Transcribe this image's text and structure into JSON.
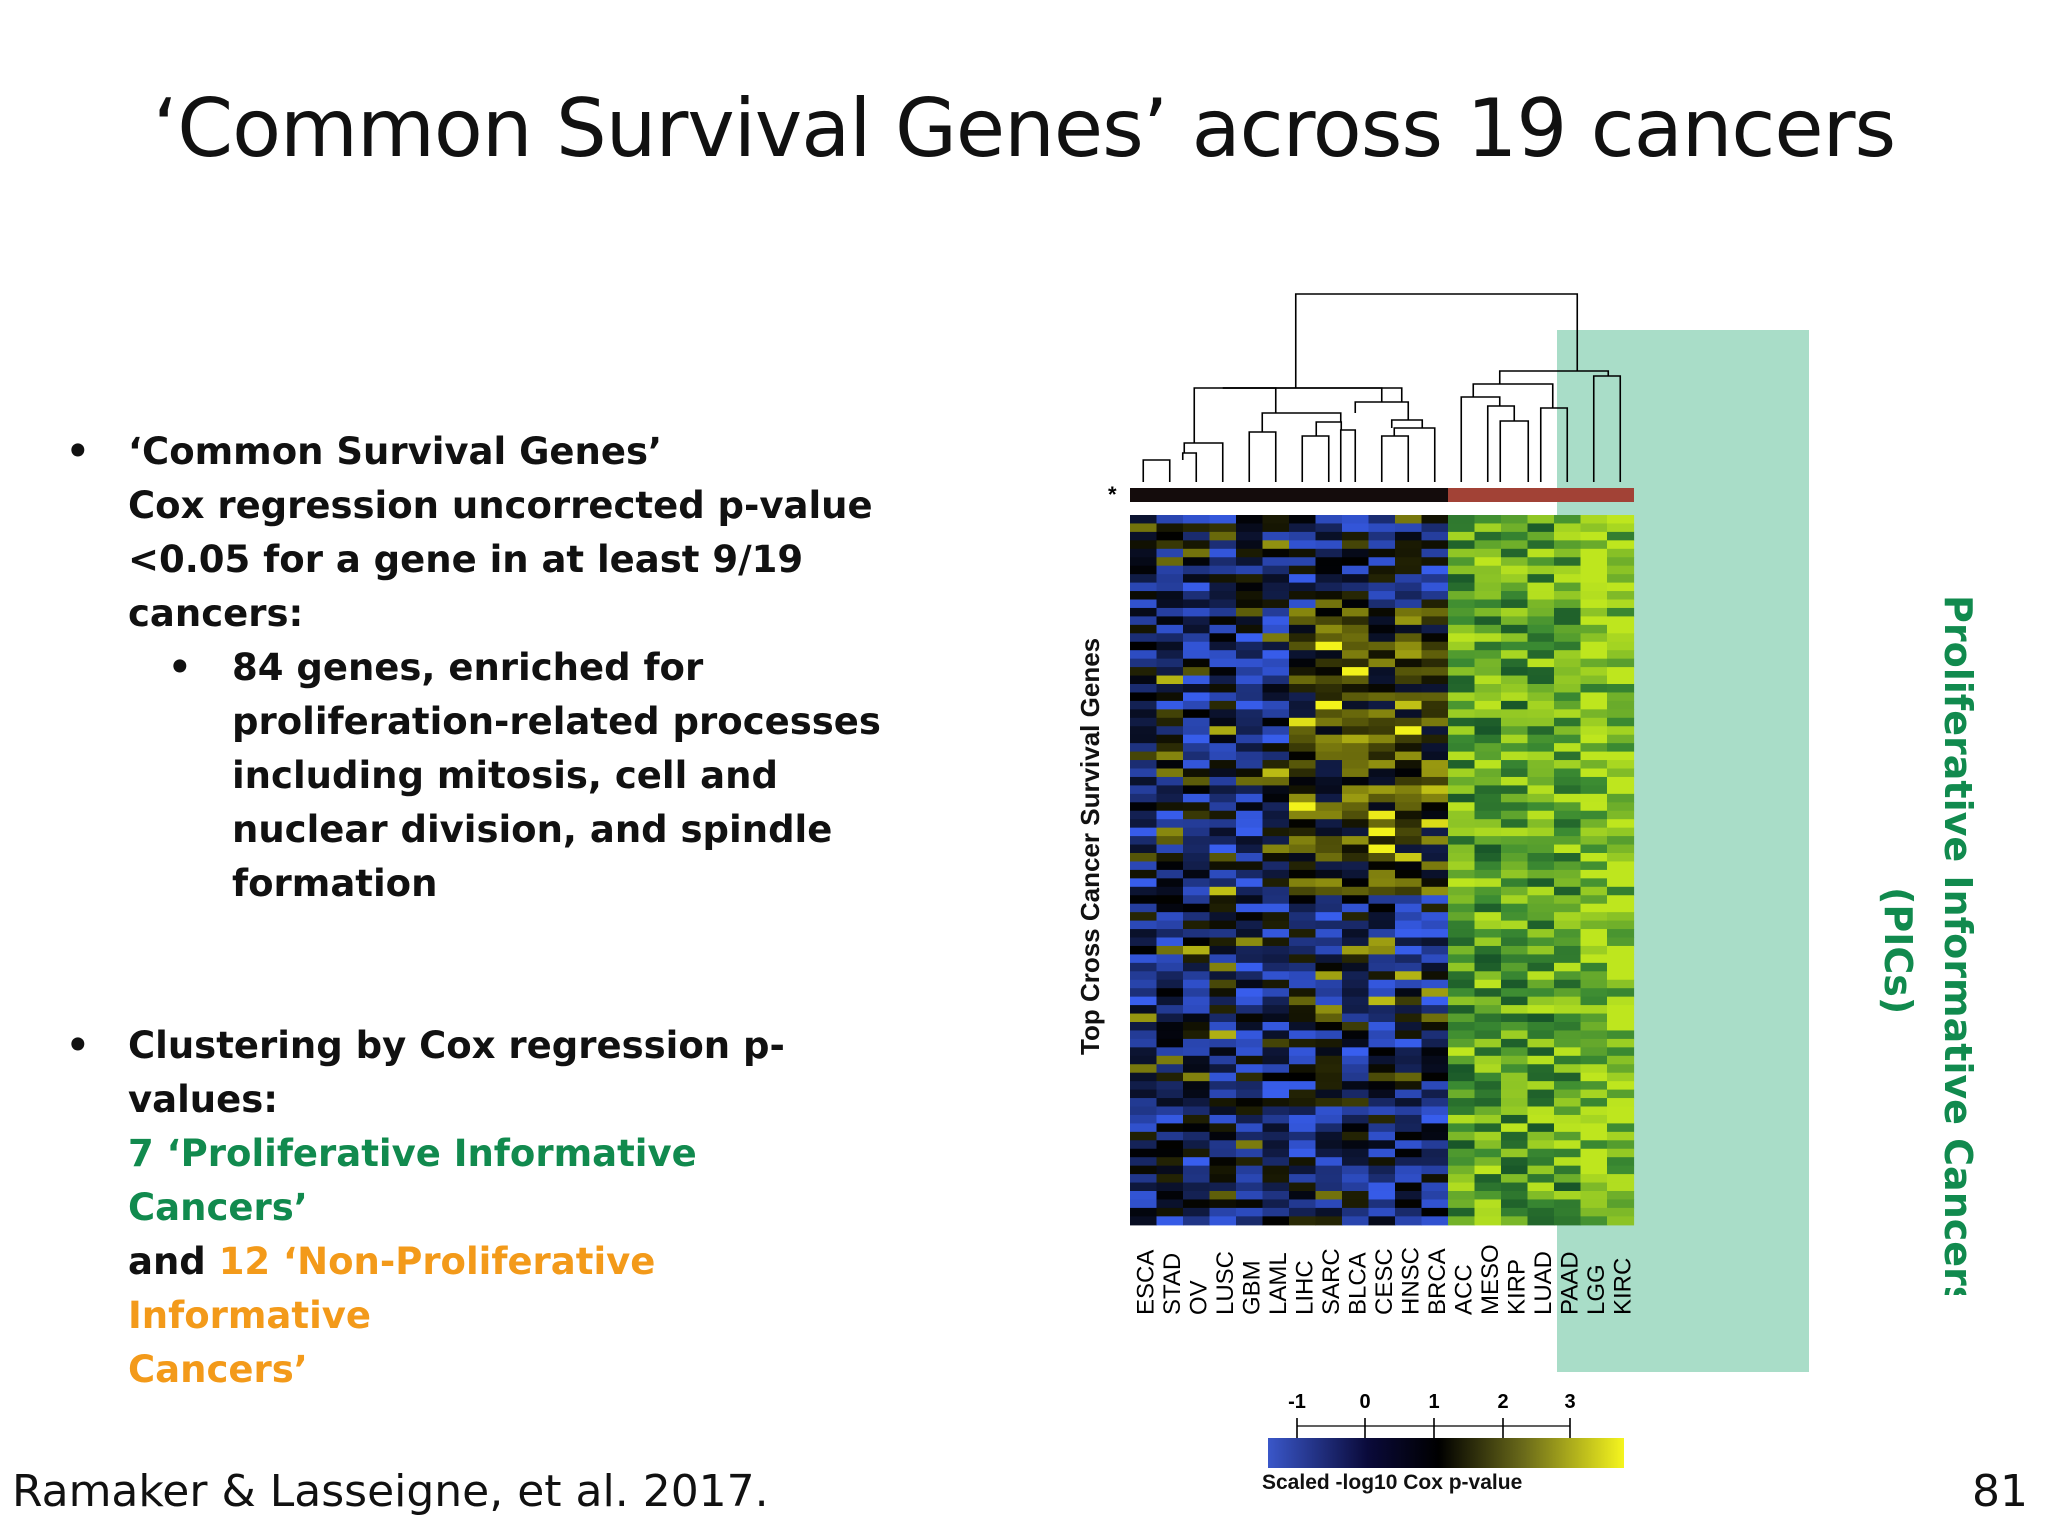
{
  "slide": {
    "title": "‘Common Survival Genes’ across 19 cancers",
    "reference": "Ramaker & Lasseigne, et al. 2017.",
    "page_number": "81"
  },
  "bullets": {
    "b1_line1": "‘Common Survival Genes’",
    "b1_line2": "Cox regression uncorrected p-value",
    "b1_line3": "<0.05 for a gene in at least 9/19",
    "b1_line4": "cancers:",
    "sub1_line1": "84 genes, enriched for",
    "sub1_line2": "proliferation-related processes",
    "sub1_line3": "including mitosis, cell and",
    "sub1_line4": "nuclear division, and spindle",
    "sub1_line5": "formation",
    "b2_line1": "Clustering by Cox regression p-",
    "b2_line2": "values:",
    "b2_green": "7 ‘Proliferative Informative Cancers’",
    "b2_and": "and ",
    "b2_orange1": "12 ‘Non-Proliferative Informative",
    "b2_orange2": "Cancers’"
  },
  "figure": {
    "y_axis_label": "Top Cross Cancer Survival Genes",
    "star": "*",
    "pic_label_line1": "Proliferative Informative Cancers",
    "pic_label_line2": "(PICs)",
    "columns": [
      "ESCA",
      "STAD",
      "OV",
      "LUSC",
      "GBM",
      "LAML",
      "LIHC",
      "SARC",
      "BLCA",
      "CESC",
      "HNSC",
      "BRCA",
      "ACC",
      "MESO",
      "KIRP",
      "LUAD",
      "PAAD",
      "LGG",
      "KIRC"
    ],
    "colorbar_ticks": [
      "-1",
      "0",
      "1",
      "2",
      "3"
    ],
    "colorbar_title": "Scaled -log10 Cox p-value",
    "colors": {
      "low": "#2f4fc8",
      "mid": "#000000",
      "high": "#f2f21a",
      "pic_band": "#a9ddc8",
      "green": "#118a4e",
      "orange": "#f39a1a"
    }
  }
}
